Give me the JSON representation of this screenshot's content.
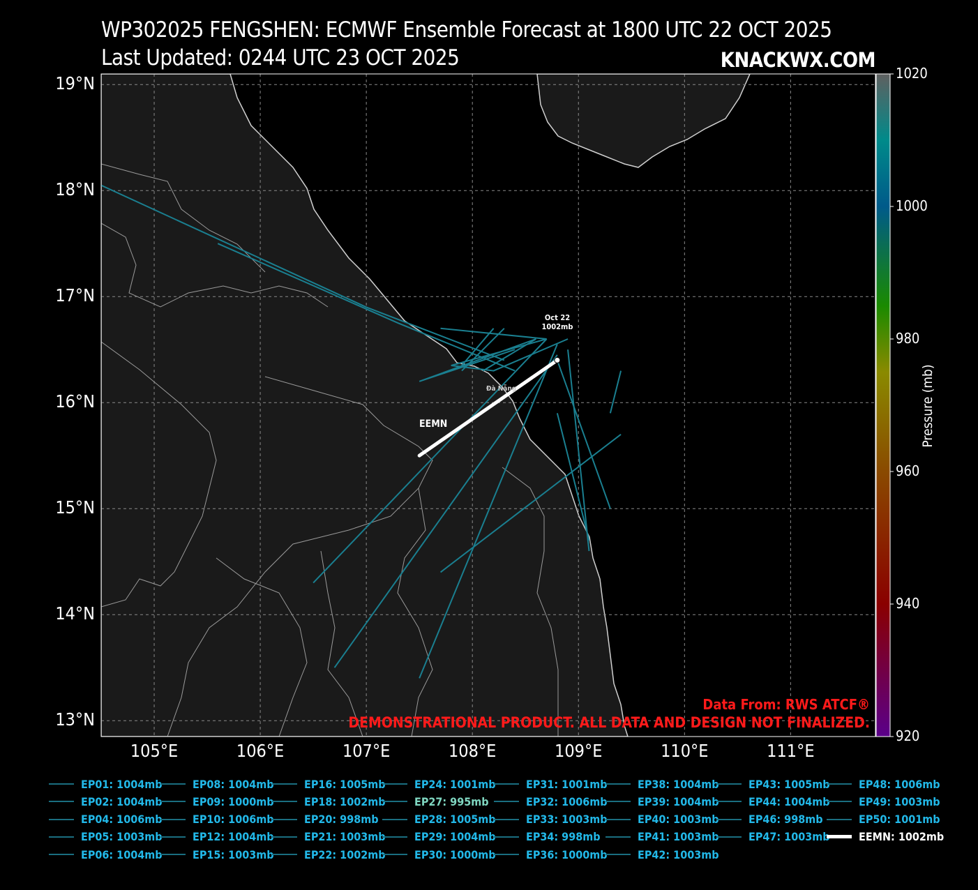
{
  "title_line1": "WP302025 FENGSHEN: ECMWF Ensemble Forecast at 1800 UTC 22 OCT 2025",
  "title_line2": "Last Updated: 0244 UTC 23 OCT 2025",
  "brand": "KNACKWX.COM",
  "source": "Data From: RWS ATCF®",
  "disclaimer": "DEMONSTRATIONAL PRODUCT. ALL DATA AND DESIGN NOT FINALIZED.",
  "latitude_labels": [
    "13°N",
    "14°N",
    "15°N",
    "16°N",
    "17°N",
    "18°N",
    "19°N"
  ],
  "longitude_labels": [
    "105°E",
    "106°E",
    "107°E",
    "108°E",
    "109°E",
    "110°E",
    "111°E"
  ],
  "colorbar": {
    "title": "Pressure (mb)",
    "ticks": [
      "920",
      "940",
      "960",
      "980",
      "1000",
      "1020"
    ]
  },
  "map": {
    "extent": {
      "lon_min": 104.5,
      "lon_max": 111.8,
      "lat_min": 12.85,
      "lat_max": 19.1
    },
    "colors": {
      "ocean": "#000000",
      "land": "#1a1a1a",
      "coast": "#cccccc",
      "grid": "#888888",
      "member_track": "#1a7f90",
      "mean_track": "#ffffff"
    },
    "start_label": {
      "date": "Oct 22",
      "pressure": "1002mb"
    },
    "mean_track_label": "EEMN",
    "city_label": "Đà Nẵng",
    "mean_track": [
      [
        108.8,
        16.4
      ],
      [
        107.5,
        15.5
      ]
    ],
    "member_tracks": [
      [
        [
          104.5,
          18.05
        ],
        [
          107.0,
          16.9
        ],
        [
          108.3,
          16.4
        ]
      ],
      [
        [
          105.6,
          17.5
        ],
        [
          107.3,
          16.75
        ],
        [
          108.4,
          16.3
        ]
      ],
      [
        [
          108.7,
          16.6
        ],
        [
          106.5,
          14.3
        ]
      ],
      [
        [
          108.8,
          16.45
        ],
        [
          106.7,
          13.5
        ]
      ],
      [
        [
          108.8,
          16.55
        ],
        [
          107.5,
          13.4
        ]
      ],
      [
        [
          108.9,
          16.6
        ],
        [
          108.2,
          16.3
        ],
        [
          107.8,
          16.35
        ],
        [
          108.7,
          16.6
        ],
        [
          107.7,
          16.7
        ]
      ],
      [
        [
          108.6,
          16.6
        ],
        [
          107.5,
          16.2
        ],
        [
          108.4,
          16.5
        ]
      ],
      [
        [
          108.2,
          16.7
        ],
        [
          107.9,
          16.35
        ]
      ],
      [
        [
          108.9,
          16.5
        ],
        [
          109.1,
          14.6
        ]
      ],
      [
        [
          108.8,
          16.4
        ],
        [
          109.3,
          15.0
        ]
      ],
      [
        [
          109.4,
          16.3
        ],
        [
          109.3,
          15.9
        ]
      ],
      [
        [
          109.4,
          15.7
        ],
        [
          107.7,
          14.4
        ]
      ],
      [
        [
          108.6,
          16.6
        ],
        [
          108.1,
          16.3
        ]
      ],
      [
        [
          107.9,
          16.3
        ],
        [
          108.3,
          16.7
        ]
      ],
      [
        [
          109.1,
          14.7
        ],
        [
          108.8,
          15.9
        ]
      ]
    ]
  },
  "legend": [
    {
      "label": "EP01: 1004mb"
    },
    {
      "label": "EP02: 1004mb"
    },
    {
      "label": "EP04: 1006mb"
    },
    {
      "label": "EP05: 1003mb"
    },
    {
      "label": "EP06: 1004mb"
    },
    {
      "label": "EP08: 1004mb"
    },
    {
      "label": "EP09: 1000mb"
    },
    {
      "label": "EP10: 1006mb"
    },
    {
      "label": "EP12: 1004mb"
    },
    {
      "label": "EP15: 1003mb"
    },
    {
      "label": "EP16: 1005mb"
    },
    {
      "label": "EP18: 1002mb"
    },
    {
      "label": "EP20: 998mb"
    },
    {
      "label": "EP21: 1003mb"
    },
    {
      "label": "EP22: 1002mb"
    },
    {
      "label": "EP24: 1001mb"
    },
    {
      "label": "EP27: 995mb",
      "color": "#7fd6c0"
    },
    {
      "label": "EP28: 1005mb"
    },
    {
      "label": "EP29: 1004mb"
    },
    {
      "label": "EP30: 1000mb"
    },
    {
      "label": "EP31: 1001mb"
    },
    {
      "label": "EP32: 1006mb"
    },
    {
      "label": "EP33: 1003mb"
    },
    {
      "label": "EP34: 998mb"
    },
    {
      "label": "EP36: 1000mb"
    },
    {
      "label": "EP38: 1004mb"
    },
    {
      "label": "EP39: 1004mb"
    },
    {
      "label": "EP40: 1003mb"
    },
    {
      "label": "EP41: 1003mb"
    },
    {
      "label": "EP42: 1003mb"
    },
    {
      "label": "EP43: 1005mb"
    },
    {
      "label": "EP44: 1004mb"
    },
    {
      "label": "EP46: 998mb"
    },
    {
      "label": "EP47: 1003mb"
    },
    {
      "label": "EP48: 1006mb"
    },
    {
      "label": "EP49: 1003mb"
    },
    {
      "label": "EP50: 1001mb"
    },
    {
      "label": "EEMN: 1002mb",
      "mean": true
    }
  ]
}
